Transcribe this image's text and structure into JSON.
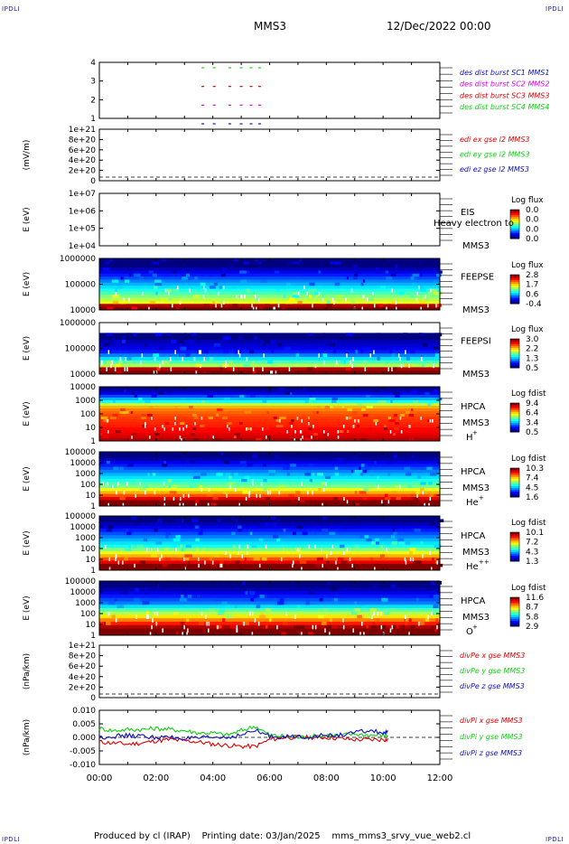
{
  "corner_labels": {
    "tl": "IPDLI",
    "tr": "IPDLI",
    "bl": "IPDLI",
    "br": "IPDLI"
  },
  "header": {
    "spacecraft": "MMS3",
    "date": "12/Dec/2022 00:00"
  },
  "footer": {
    "produced": "Produced by cl (IRAP)",
    "printing": "Printing date: 03/Jan/2025",
    "file": "mms_mms3_srvy_vue_web2.cl"
  },
  "colors": {
    "red": "#e00000",
    "green": "#10d010",
    "blue": "#1010c0",
    "magenta": "#e000e0",
    "axis": "#000000"
  },
  "chart_data": {
    "type": "stacked-timeseries",
    "x_ticks": [
      "00:00",
      "02:00",
      "04:00",
      "06:00",
      "08:00",
      "10:00",
      "12:00"
    ],
    "x_range_hours": [
      0,
      12
    ],
    "panels": [
      {
        "id": "des_dist_burst",
        "type": "line",
        "y_ticks": [
          "4",
          "3",
          "2",
          "1"
        ],
        "legend": [
          {
            "text": "des dist burst SC1 MMS1",
            "color": "#1010c0"
          },
          {
            "text": "des dist burst SC2 MMS2",
            "color": "#e000e0"
          },
          {
            "text": "des dist burst SC3 MMS3",
            "color": "#e00000"
          },
          {
            "text": "des dist burst SC4 MMS4",
            "color": "#10d010"
          }
        ],
        "series": [
          {
            "sc": 4,
            "color": "#10d010",
            "intervals_h": [
              [
                3.6,
                3.75
              ],
              [
                4.0,
                4.12
              ],
              [
                4.55,
                4.7
              ],
              [
                4.95,
                5.05
              ],
              [
                5.3,
                5.4
              ],
              [
                5.6,
                5.7
              ]
            ]
          },
          {
            "sc": 3,
            "color": "#e00000",
            "intervals_h": [
              [
                3.6,
                3.75
              ],
              [
                4.0,
                4.12
              ],
              [
                4.55,
                4.7
              ],
              [
                4.95,
                5.05
              ],
              [
                5.3,
                5.4
              ],
              [
                5.6,
                5.7
              ]
            ]
          },
          {
            "sc": 2,
            "color": "#e000e0",
            "intervals_h": [
              [
                3.6,
                3.75
              ],
              [
                4.0,
                4.12
              ],
              [
                4.55,
                4.7
              ],
              [
                4.95,
                5.05
              ],
              [
                5.3,
                5.4
              ],
              [
                5.6,
                5.7
              ]
            ]
          },
          {
            "sc": 1,
            "color": "#1010c0",
            "intervals_h": [
              [
                3.6,
                3.75
              ],
              [
                4.0,
                4.12
              ],
              [
                4.55,
                4.7
              ],
              [
                4.95,
                5.05
              ],
              [
                5.3,
                5.4
              ],
              [
                5.6,
                5.7
              ]
            ]
          }
        ]
      },
      {
        "id": "edi",
        "type": "line",
        "ylabel": "(mV/m)",
        "y_ticks": [
          "1e+21",
          "8e+20",
          "6e+20",
          "4e+20",
          "2e+20",
          "0"
        ],
        "legend": [
          {
            "text": "edi ex gse l2 MMS3",
            "color": "#e00000"
          },
          {
            "text": "edi ey gse l2 MMS3",
            "color": "#10d010"
          },
          {
            "text": "edi ez gse l2 MMS3",
            "color": "#1010c0"
          }
        ],
        "zero_line": true
      },
      {
        "id": "eis",
        "type": "heatmap",
        "ylabel": "E (eV)",
        "y_ticks": [
          "1e+07",
          "1e+06",
          "1e+05",
          "1e+04"
        ],
        "instrument": "EIS",
        "overlay_text": "Heavy electron to",
        "sc_label": "MMS3",
        "colorbar": {
          "title": "Log flux",
          "ticks": [
            "0.0",
            "0.0",
            "0.0",
            "0.0"
          ]
        },
        "empty": true
      },
      {
        "id": "feepse",
        "type": "heatmap",
        "ylabel": "E (eV)",
        "y_ticks": [
          "1000000",
          "100000",
          "10000"
        ],
        "instrument": "FEEPSE",
        "sc_label": "MMS3",
        "colorbar": {
          "title": "Log flux",
          "ticks": [
            "2.8",
            "1.7",
            "0.6",
            "-0.4"
          ]
        },
        "profile": [
          0.0,
          0.0,
          0.0,
          0.05,
          0.1,
          0.15,
          0.2,
          0.25,
          0.3,
          0.35,
          0.4,
          0.45,
          0.5,
          0.55,
          0.6,
          0.95,
          1.0
        ]
      },
      {
        "id": "feepsi",
        "type": "heatmap",
        "ylabel": "E (eV)",
        "y_ticks": [
          "1000000",
          "100000",
          "10000"
        ],
        "instrument": "FEEPSI",
        "sc_label": "MMS3",
        "colorbar": {
          "title": "Log flux",
          "ticks": [
            "3.0",
            "2.2",
            "1.3",
            "0.5"
          ]
        },
        "profile": [
          -1,
          -1,
          -1,
          0.0,
          0.0,
          0.05,
          0.08,
          0.1,
          0.15,
          0.25,
          0.35,
          0.45,
          0.55,
          0.95,
          1.0
        ]
      },
      {
        "id": "hpca_h",
        "type": "heatmap",
        "ylabel": "E (eV)",
        "y_ticks": [
          "10000",
          "1000",
          "100",
          "10",
          "1"
        ],
        "instrument": "HPCA",
        "sc_label": "MMS3",
        "species": "H",
        "charge": "+",
        "colorbar": {
          "title": "Log fdist",
          "ticks": [
            "9.4",
            "6.4",
            "3.4",
            "0.5"
          ]
        },
        "profile": [
          0.0,
          0.05,
          0.1,
          0.2,
          0.3,
          0.4,
          0.55,
          0.7,
          0.75,
          0.78,
          0.8,
          0.82,
          0.83,
          0.84,
          0.85,
          0.87,
          0.88,
          0.9,
          0.92,
          0.95
        ]
      },
      {
        "id": "hpca_he",
        "type": "heatmap",
        "ylabel": "E (eV)",
        "y_ticks": [
          "100000",
          "10000",
          "1000",
          "100",
          "10",
          "1"
        ],
        "instrument": "HPCA",
        "sc_label": "MMS3",
        "species": "He",
        "charge": "+",
        "colorbar": {
          "title": "Log fdist",
          "ticks": [
            "10.3",
            "7.4",
            "4.5",
            "1.6"
          ]
        },
        "profile": [
          0.0,
          0.0,
          0.05,
          0.1,
          0.15,
          0.2,
          0.25,
          0.3,
          0.35,
          0.4,
          0.45,
          0.5,
          0.6,
          0.7,
          0.8,
          0.9,
          1.0,
          1.0
        ]
      },
      {
        "id": "hpca_hepp",
        "type": "heatmap",
        "ylabel": "E (eV)",
        "y_ticks": [
          "100000",
          "10000",
          "1000",
          "100",
          "10",
          "1"
        ],
        "instrument": "HPCA",
        "sc_label": "MMS3",
        "species": "He",
        "charge": "++",
        "colorbar": {
          "title": "Log fdist",
          "ticks": [
            "10.1",
            "7.2",
            "4.3",
            "1.3"
          ]
        },
        "profile": [
          0.0,
          0.0,
          0.05,
          0.1,
          0.15,
          0.2,
          0.25,
          0.3,
          0.35,
          0.4,
          0.5,
          0.6,
          0.7,
          0.8,
          0.9,
          1.0,
          1.0
        ]
      },
      {
        "id": "hpca_o",
        "type": "heatmap",
        "ylabel": "E (eV)",
        "y_ticks": [
          "100000",
          "10000",
          "1000",
          "100",
          "10",
          "1"
        ],
        "instrument": "HPCA",
        "sc_label": "MMS3",
        "species": "O",
        "charge": "+",
        "colorbar": {
          "title": "Log fdist",
          "ticks": [
            "11.6",
            "8.7",
            "5.8",
            "2.9"
          ]
        },
        "profile": [
          0.0,
          0.0,
          0.05,
          0.1,
          0.15,
          0.2,
          0.25,
          0.35,
          0.45,
          0.55,
          0.65,
          0.75,
          0.85,
          0.95,
          1.0,
          1.0
        ]
      },
      {
        "id": "divpe",
        "type": "line",
        "ylabel": "(nPa/km)",
        "y_ticks": [
          "1e+21",
          "8e+20",
          "6e+20",
          "4e+20",
          "2e+20",
          "0"
        ],
        "legend": [
          {
            "text": "divPe x gse MMS3",
            "color": "#e00000"
          },
          {
            "text": "divPe y gse MMS3",
            "color": "#10d010"
          },
          {
            "text": "divPe z gse MMS3",
            "color": "#1010c0"
          }
        ],
        "zero_line": true
      },
      {
        "id": "divpi",
        "type": "line",
        "ylabel": "(nPa/km)",
        "y_ticks": [
          "0.010",
          "0.005",
          "0.000",
          "-0.005",
          "-0.010"
        ],
        "ylim": [
          -0.012,
          0.012
        ],
        "legend": [
          {
            "text": "divPi x gse MMS3",
            "color": "#e00000"
          },
          {
            "text": "divPi y gse MMS3",
            "color": "#10d010"
          },
          {
            "text": "divPi z gse MMS3",
            "color": "#1010c0"
          }
        ],
        "zero_line": true,
        "series": [
          {
            "name": "divPi x gse MMS3",
            "color": "#e00000",
            "x": [
              0.0,
              0.5,
              1.0,
              1.5,
              2.0,
              2.5,
              3.0,
              3.5,
              4.0,
              4.5,
              5.0,
              5.5,
              6.0,
              6.5,
              7.0,
              7.5,
              8.0,
              8.5,
              9.0,
              9.5,
              10.0,
              10.2
            ],
            "y": [
              -0.002,
              -0.0025,
              -0.003,
              -0.0025,
              -0.0015,
              -0.001,
              -0.0015,
              -0.002,
              -0.003,
              -0.0035,
              -0.004,
              -0.004,
              -0.001,
              0.0,
              0.0,
              0.0,
              0.0,
              -0.0005,
              -0.001,
              -0.001,
              -0.001,
              -0.001
            ]
          },
          {
            "name": "divPi y gse MMS3",
            "color": "#10d010",
            "x": [
              0.0,
              0.5,
              1.0,
              1.5,
              2.0,
              2.5,
              3.0,
              3.5,
              4.0,
              4.5,
              5.0,
              5.5,
              6.0,
              6.5,
              7.0,
              7.5,
              8.0,
              8.5,
              9.0,
              9.5,
              10.0,
              10.2
            ],
            "y": [
              0.004,
              0.003,
              0.0035,
              0.0035,
              0.004,
              0.0035,
              0.003,
              0.002,
              0.002,
              0.001,
              0.003,
              0.005,
              0.001,
              0.0005,
              0.0,
              0.0005,
              0.001,
              0.001,
              0.0015,
              0.001,
              0.001,
              0.001
            ]
          },
          {
            "name": "divPi z gse MMS3",
            "color": "#1010c0",
            "x": [
              0.0,
              0.5,
              1.0,
              1.5,
              2.0,
              2.5,
              3.0,
              3.5,
              4.0,
              4.5,
              5.0,
              5.5,
              6.0,
              6.5,
              7.0,
              7.5,
              8.0,
              8.5,
              9.0,
              9.5,
              10.0,
              10.2
            ],
            "y": [
              0.0,
              0.0005,
              0.0008,
              0.0005,
              0.0,
              0.0,
              -0.0005,
              -0.0005,
              0.0,
              0.0,
              0.001,
              0.003,
              0.0005,
              0.0002,
              0.0003,
              0.0005,
              0.0008,
              0.001,
              0.002,
              0.003,
              0.002,
              0.002
            ]
          }
        ]
      }
    ]
  }
}
